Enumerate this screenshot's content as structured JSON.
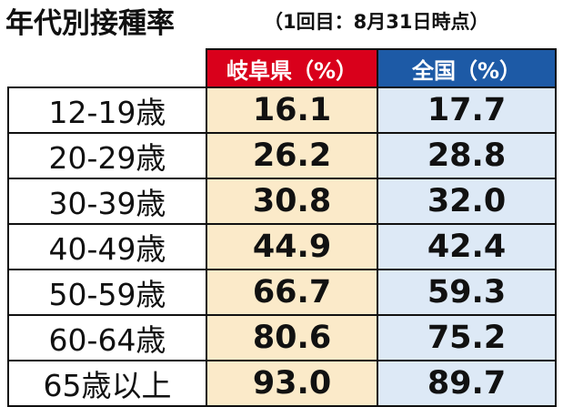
{
  "header": {
    "title": "年代別接種率",
    "subtitle": "（1回目：8月31日時点）"
  },
  "table": {
    "columns": [
      "岐阜県（%）",
      "全国（%）"
    ],
    "rows": [
      [
        "12-19歳",
        "16.1",
        "17.7"
      ],
      [
        "20-29歳",
        "26.2",
        "28.8"
      ],
      [
        "30-39歳",
        "30.8",
        "32.0"
      ],
      [
        "40-49歳",
        "44.9",
        "42.4"
      ],
      [
        "50-59歳",
        "66.7",
        "59.3"
      ],
      [
        "60-64歳",
        "80.6",
        "75.2"
      ],
      [
        "65歳以上",
        "93.0",
        "89.7"
      ]
    ]
  }
}
